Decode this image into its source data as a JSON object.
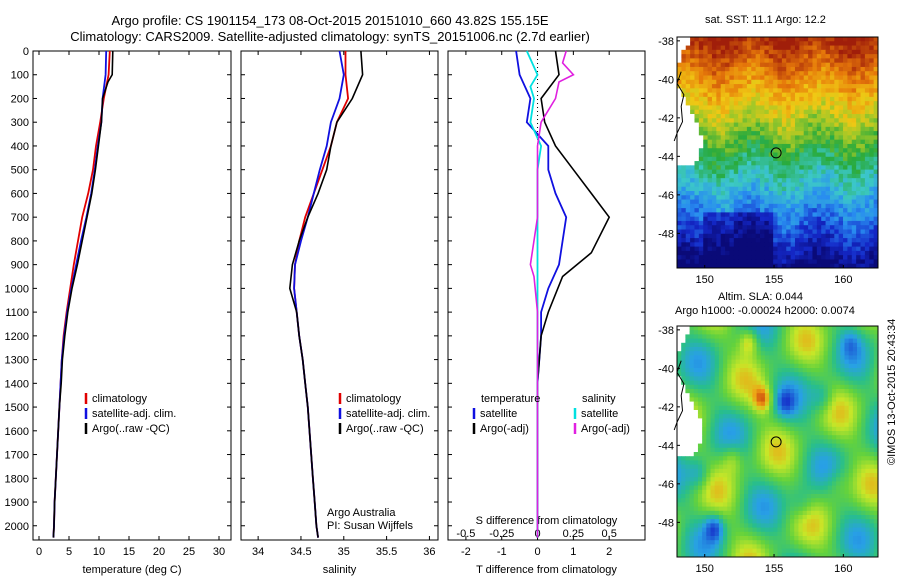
{
  "title_line1": "Argo profile: CS 1901154_173 08-Oct-2015 20151010_660 43.82S 155.15E",
  "title_line2": "Climatology: CARS2009. Satellite-adjusted climatology: synTS_20151006.nc (2.7d earlier)",
  "colors": {
    "climatology": "#e00000",
    "satellite": "#1010e0",
    "argo": "#000000",
    "sal_satellite": "#00e0e0",
    "sal_argo": "#e020e0"
  },
  "chart_data": [
    {
      "id": "temperature",
      "type": "line",
      "xlabel": "temperature (deg C)",
      "xlim": [
        -1,
        32
      ],
      "xticks": [
        0,
        5,
        10,
        15,
        20,
        25,
        30
      ],
      "ylim": [
        0,
        2060
      ],
      "yticks": [
        0,
        100,
        200,
        300,
        400,
        500,
        600,
        700,
        800,
        900,
        1000,
        1100,
        1200,
        1300,
        1400,
        1500,
        1600,
        1700,
        1800,
        1900,
        2000
      ],
      "legend": [
        "climatology",
        "satellite-adj. clim.",
        "Argo(..raw -QC)"
      ],
      "series": [
        {
          "name": "climatology",
          "color": "#e00000",
          "points": [
            [
              11.8,
              0
            ],
            [
              11.6,
              100
            ],
            [
              10.8,
              200
            ],
            [
              10.2,
              300
            ],
            [
              9.5,
              400
            ],
            [
              9.0,
              500
            ],
            [
              8.2,
              600
            ],
            [
              7.2,
              700
            ],
            [
              6.5,
              800
            ],
            [
              5.8,
              900
            ],
            [
              5.2,
              1000
            ],
            [
              4.6,
              1100
            ],
            [
              4.1,
              1200
            ],
            [
              3.8,
              1300
            ],
            [
              3.6,
              1400
            ],
            [
              3.4,
              1500
            ],
            [
              3.2,
              1600
            ],
            [
              3.0,
              1700
            ],
            [
              2.8,
              1800
            ],
            [
              2.6,
              1900
            ],
            [
              2.5,
              2000
            ],
            [
              2.4,
              2050
            ]
          ]
        },
        {
          "name": "satellite-adj. clim.",
          "color": "#1010e0",
          "points": [
            [
              11.2,
              0
            ],
            [
              11.1,
              100
            ],
            [
              10.6,
              200
            ],
            [
              10.4,
              300
            ],
            [
              9.8,
              400
            ],
            [
              9.3,
              500
            ],
            [
              8.7,
              600
            ],
            [
              7.9,
              700
            ],
            [
              7.0,
              800
            ],
            [
              6.2,
              900
            ],
            [
              5.4,
              1000
            ],
            [
              4.7,
              1100
            ],
            [
              4.2,
              1200
            ],
            [
              3.8,
              1300
            ],
            [
              3.6,
              1400
            ],
            [
              3.4,
              1500
            ],
            [
              3.2,
              1600
            ],
            [
              3.0,
              1700
            ],
            [
              2.8,
              1800
            ],
            [
              2.6,
              1900
            ],
            [
              2.5,
              2000
            ],
            [
              2.4,
              2050
            ]
          ]
        },
        {
          "name": "Argo(..raw -QC)",
          "color": "#000000",
          "points": [
            [
              12.3,
              0
            ],
            [
              12.2,
              100
            ],
            [
              11.5,
              130
            ],
            [
              10.6,
              200
            ],
            [
              10.4,
              300
            ],
            [
              9.9,
              400
            ],
            [
              9.4,
              500
            ],
            [
              8.8,
              600
            ],
            [
              8.0,
              700
            ],
            [
              7.2,
              800
            ],
            [
              6.4,
              900
            ],
            [
              5.5,
              1000
            ],
            [
              4.8,
              1100
            ],
            [
              4.3,
              1200
            ],
            [
              3.9,
              1300
            ],
            [
              3.7,
              1400
            ],
            [
              3.4,
              1500
            ],
            [
              3.2,
              1600
            ],
            [
              3.0,
              1700
            ],
            [
              2.8,
              1800
            ],
            [
              2.6,
              1900
            ],
            [
              2.5,
              2000
            ],
            [
              2.4,
              2050
            ]
          ]
        }
      ]
    },
    {
      "id": "salinity",
      "type": "line",
      "xlabel": "salinity",
      "xlim": [
        33.8,
        36.1
      ],
      "xticks": [
        34,
        34.5,
        35,
        35.5,
        36
      ],
      "ylim": [
        0,
        2060
      ],
      "legend": [
        "climatology",
        "satellite-adj. clim.",
        "Argo(..raw -QC)"
      ],
      "annotation": [
        "Argo Australia",
        "PI: Susan Wijffels"
      ],
      "series": [
        {
          "name": "climatology",
          "color": "#e00000",
          "points": [
            [
              35.02,
              0
            ],
            [
              35.02,
              100
            ],
            [
              35.05,
              200
            ],
            [
              34.92,
              300
            ],
            [
              34.85,
              400
            ],
            [
              34.75,
              500
            ],
            [
              34.65,
              600
            ],
            [
              34.55,
              700
            ],
            [
              34.48,
              800
            ],
            [
              34.43,
              900
            ],
            [
              34.42,
              1000
            ],
            [
              34.45,
              1100
            ],
            [
              34.48,
              1200
            ],
            [
              34.52,
              1300
            ],
            [
              34.55,
              1400
            ],
            [
              34.58,
              1500
            ],
            [
              34.6,
              1600
            ],
            [
              34.62,
              1700
            ],
            [
              34.64,
              1800
            ],
            [
              34.66,
              1900
            ],
            [
              34.68,
              2000
            ],
            [
              34.7,
              2050
            ]
          ]
        },
        {
          "name": "satellite-adj. clim.",
          "color": "#1010e0",
          "points": [
            [
              34.95,
              0
            ],
            [
              35.0,
              100
            ],
            [
              34.95,
              200
            ],
            [
              34.85,
              300
            ],
            [
              34.8,
              400
            ],
            [
              34.72,
              500
            ],
            [
              34.65,
              600
            ],
            [
              34.58,
              700
            ],
            [
              34.5,
              800
            ],
            [
              34.43,
              900
            ],
            [
              34.42,
              1000
            ],
            [
              34.45,
              1100
            ],
            [
              34.48,
              1200
            ],
            [
              34.52,
              1300
            ],
            [
              34.55,
              1400
            ],
            [
              34.58,
              1500
            ],
            [
              34.6,
              1600
            ],
            [
              34.62,
              1700
            ],
            [
              34.64,
              1800
            ],
            [
              34.66,
              1900
            ],
            [
              34.68,
              2000
            ],
            [
              34.7,
              2050
            ]
          ]
        },
        {
          "name": "Argo(..raw -QC)",
          "color": "#000000",
          "points": [
            [
              35.2,
              0
            ],
            [
              35.22,
              100
            ],
            [
              35.1,
              200
            ],
            [
              34.92,
              300
            ],
            [
              34.85,
              400
            ],
            [
              34.8,
              500
            ],
            [
              34.7,
              600
            ],
            [
              34.58,
              700
            ],
            [
              34.48,
              800
            ],
            [
              34.4,
              900
            ],
            [
              34.37,
              1000
            ],
            [
              34.45,
              1100
            ],
            [
              34.48,
              1200
            ],
            [
              34.52,
              1300
            ],
            [
              34.55,
              1400
            ],
            [
              34.58,
              1500
            ],
            [
              34.6,
              1600
            ],
            [
              34.62,
              1700
            ],
            [
              34.64,
              1800
            ],
            [
              34.66,
              1900
            ],
            [
              34.68,
              2000
            ],
            [
              34.7,
              2050
            ]
          ]
        }
      ]
    },
    {
      "id": "difference",
      "type": "line",
      "xlabel": "T difference from climatology",
      "xlabel_top": "S difference from climatology",
      "xlim": [
        -2.5,
        3.0
      ],
      "xticks": [
        -2,
        -1,
        0,
        1,
        2
      ],
      "xticks_top_values": [
        -2,
        -1,
        0,
        1,
        2
      ],
      "xticks_top_labels": [
        "-0.5",
        "-0.25",
        "0",
        "0.25",
        "0.5"
      ],
      "ylim": [
        0,
        2060
      ],
      "legend": {
        "temperature": [
          "temperature",
          "satellite",
          "Argo(-adj)"
        ],
        "salinity": [
          "salinity",
          "satellite",
          "Argo(-adj)"
        ]
      },
      "series": [
        {
          "name": "T satellite",
          "color": "#1010e0",
          "points": [
            [
              -0.6,
              0
            ],
            [
              -0.5,
              100
            ],
            [
              -0.2,
              200
            ],
            [
              -0.3,
              300
            ],
            [
              0.3,
              400
            ],
            [
              0.3,
              500
            ],
            [
              0.5,
              600
            ],
            [
              0.8,
              700
            ],
            [
              0.7,
              800
            ],
            [
              0.6,
              900
            ],
            [
              0.3,
              1000
            ],
            [
              0.1,
              1100
            ],
            [
              0.1,
              1200
            ],
            [
              0.0,
              1400
            ],
            [
              0.0,
              1600
            ],
            [
              0.0,
              1800
            ],
            [
              0.0,
              2050
            ]
          ]
        },
        {
          "name": "T Argo(-adj)",
          "color": "#000000",
          "points": [
            [
              0.5,
              0
            ],
            [
              0.6,
              100
            ],
            [
              0.1,
              200
            ],
            [
              0.2,
              300
            ],
            [
              0.5,
              400
            ],
            [
              1.0,
              500
            ],
            [
              1.5,
              600
            ],
            [
              2.0,
              700
            ],
            [
              1.5,
              850
            ],
            [
              0.7,
              950
            ],
            [
              0.3,
              1100
            ],
            [
              0.1,
              1200
            ],
            [
              0.0,
              1400
            ],
            [
              0.0,
              1600
            ],
            [
              0.0,
              1800
            ],
            [
              0.0,
              2050
            ]
          ]
        },
        {
          "name": "S satellite",
          "color": "#00e0e0",
          "points": [
            [
              -0.3,
              0
            ],
            [
              0.0,
              100
            ],
            [
              -0.2,
              150
            ],
            [
              -0.1,
              200
            ],
            [
              -0.2,
              300
            ],
            [
              0.1,
              400
            ],
            [
              0.0,
              500
            ],
            [
              0.0,
              700
            ],
            [
              0.0,
              900
            ],
            [
              0.0,
              1100
            ],
            [
              0.0,
              1400
            ],
            [
              0.0,
              1700
            ],
            [
              0.0,
              2050
            ]
          ]
        },
        {
          "name": "S Argo(-adj)",
          "color": "#e020e0",
          "points": [
            [
              0.8,
              0
            ],
            [
              0.7,
              50
            ],
            [
              1.0,
              100
            ],
            [
              0.6,
              130
            ],
            [
              0.5,
              200
            ],
            [
              0.1,
              300
            ],
            [
              0.0,
              400
            ],
            [
              0.0,
              700
            ],
            [
              -0.2,
              900
            ],
            [
              -0.1,
              950
            ],
            [
              0.0,
              1100
            ],
            [
              0.0,
              1400
            ],
            [
              0.0,
              1700
            ],
            [
              0.0,
              2050
            ]
          ]
        }
      ]
    },
    {
      "id": "sst_map",
      "type": "heatmap",
      "title": "sat. SST: 11.1  Argo: 12.2",
      "xlim": [
        148,
        162.5
      ],
      "ylim": [
        -49.8,
        -37.8
      ],
      "xticks": [
        150,
        155,
        160
      ],
      "yticks": [
        -38,
        -40,
        -42,
        -44,
        -46,
        -48
      ],
      "marker": [
        155.15,
        -43.82
      ]
    },
    {
      "id": "sla_map",
      "type": "heatmap",
      "title_line1": "Altim. SLA: 0.044",
      "title_line2": "Argo h1000: -0.00024 h2000: 0.0074",
      "xlim": [
        148,
        162.5
      ],
      "ylim": [
        -49.8,
        -37.8
      ],
      "xticks": [
        150,
        155,
        160
      ],
      "yticks": [
        -38,
        -40,
        -42,
        -44,
        -46,
        -48
      ],
      "marker": [
        155.15,
        -43.82
      ]
    }
  ],
  "credit": "©IMOS 13-Oct-2015 20:43:34"
}
